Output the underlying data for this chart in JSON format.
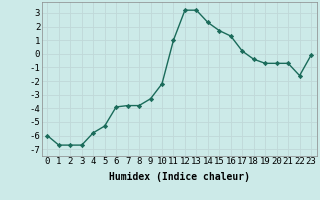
{
  "x": [
    0,
    1,
    2,
    3,
    4,
    5,
    6,
    7,
    8,
    9,
    10,
    11,
    12,
    13,
    14,
    15,
    16,
    17,
    18,
    19,
    20,
    21,
    22,
    23
  ],
  "y": [
    -6.0,
    -6.7,
    -6.7,
    -6.7,
    -5.8,
    -5.3,
    -3.9,
    -3.8,
    -3.8,
    -3.3,
    -2.2,
    1.0,
    3.2,
    3.2,
    2.3,
    1.7,
    1.3,
    0.2,
    -0.4,
    -0.7,
    -0.7,
    -0.7,
    -1.6,
    -0.1
  ],
  "line_color": "#1a6b5a",
  "marker": "D",
  "markersize": 2.2,
  "linewidth": 1.0,
  "xlabel": "Humidex (Indice chaleur)",
  "xlim": [
    -0.5,
    23.5
  ],
  "ylim": [
    -7.5,
    3.8
  ],
  "yticks": [
    -7,
    -6,
    -5,
    -4,
    -3,
    -2,
    -1,
    0,
    1,
    2,
    3
  ],
  "xticks": [
    0,
    1,
    2,
    3,
    4,
    5,
    6,
    7,
    8,
    9,
    10,
    11,
    12,
    13,
    14,
    15,
    16,
    17,
    18,
    19,
    20,
    21,
    22,
    23
  ],
  "bg_color": "#cceae8",
  "grid_color": "#c0d8d8",
  "label_fontsize": 7,
  "tick_fontsize": 6.5
}
